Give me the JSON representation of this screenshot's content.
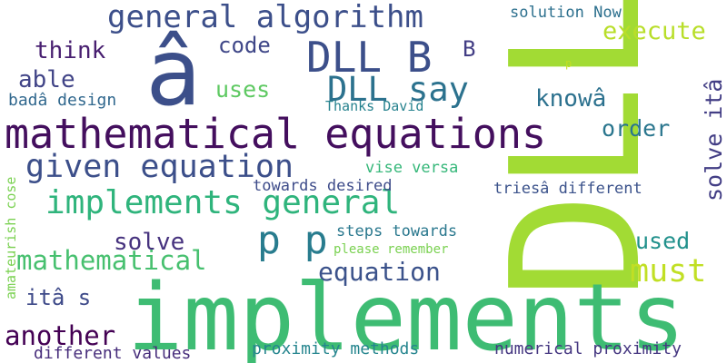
{
  "words": [
    {
      "text": "DLL",
      "color": "#a2db34"
    },
    {
      "text": "implements",
      "color": "#3ebc73"
    },
    {
      "text": "â",
      "color": "#3c4f8a"
    },
    {
      "text": "mathematical equations",
      "color": "#440f5e"
    },
    {
      "text": "general algorithm",
      "color": "#3c4f8a"
    },
    {
      "text": "DLL B",
      "color": "#3c4f8a"
    },
    {
      "text": "given equation",
      "color": "#3c4f8a"
    },
    {
      "text": "implements general",
      "color": "#2fb47c"
    },
    {
      "text": "p p",
      "color": "#287c8e"
    },
    {
      "text": "DLL say",
      "color": "#2c728e"
    },
    {
      "text": "must",
      "color": "#c1df24"
    },
    {
      "text": "mathematical",
      "color": "#47c06f"
    },
    {
      "text": "equation",
      "color": "#3b528b"
    },
    {
      "text": "another",
      "color": "#440154"
    },
    {
      "text": "solve itâ",
      "color": "#433e85"
    },
    {
      "text": "execute",
      "color": "#b8de29"
    },
    {
      "text": "think",
      "color": "#481f70"
    },
    {
      "text": "able",
      "color": "#414487"
    },
    {
      "text": "code",
      "color": "#3f4788"
    },
    {
      "text": "uses",
      "color": "#5ec962"
    },
    {
      "text": "knowâ",
      "color": "#2c718e"
    },
    {
      "text": "order",
      "color": "#2a768e"
    },
    {
      "text": "solve",
      "color": "#46327e"
    },
    {
      "text": "used",
      "color": "#21918c"
    },
    {
      "text": "itâ s",
      "color": "#3e4a89"
    },
    {
      "text": "B",
      "color": "#433e85"
    },
    {
      "text": "badâ design",
      "color": "#31688e"
    },
    {
      "text": "solution Now",
      "color": "#2d708e"
    },
    {
      "text": "Thanks David",
      "color": "#26828e"
    },
    {
      "text": "vise versa",
      "color": "#35b779"
    },
    {
      "text": "towards desired",
      "color": "#3e4c8a"
    },
    {
      "text": "triesâ different",
      "color": "#3b528b"
    },
    {
      "text": "steps towards",
      "color": "#2a788e"
    },
    {
      "text": "please remember",
      "color": "#7ad151"
    },
    {
      "text": "proximity methods",
      "color": "#25858e"
    },
    {
      "text": "numerical proximity",
      "color": "#453781"
    },
    {
      "text": "different values",
      "color": "#472d7b"
    },
    {
      "text": "amateurish cose",
      "color": "#7ad151"
    },
    {
      "text": "p",
      "color": "#c2df23"
    }
  ]
}
